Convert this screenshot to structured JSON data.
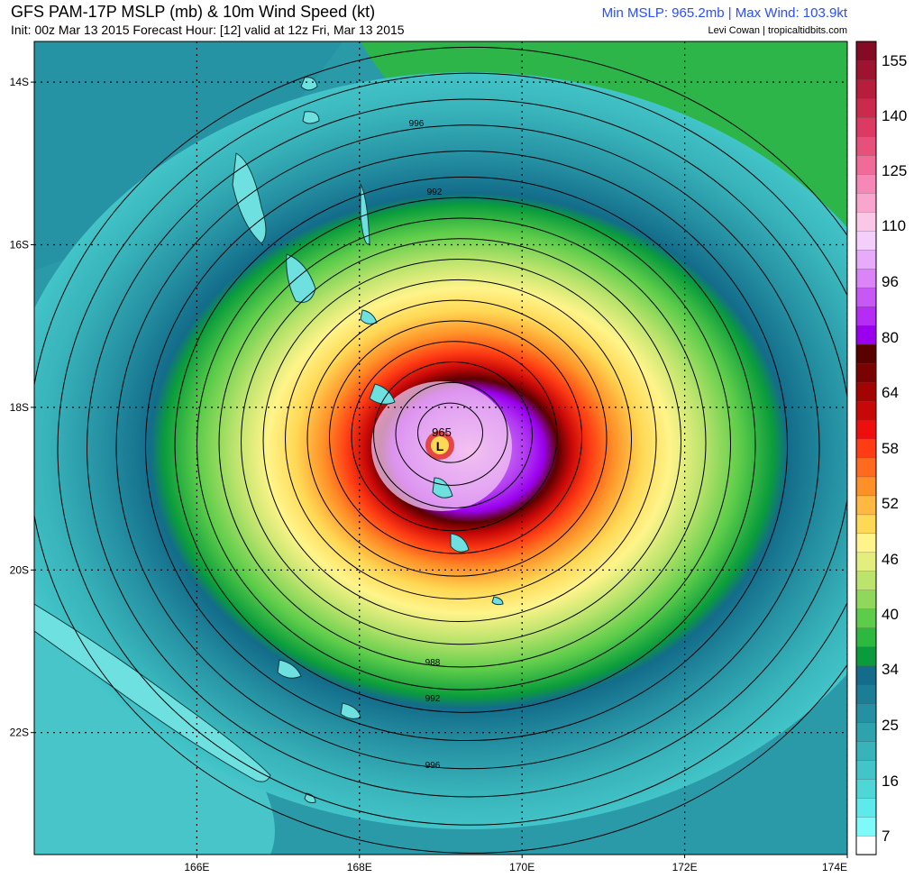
{
  "header": {
    "title": "GFS PAM-17P MSLP (mb) & 10m Wind Speed (kt)",
    "subtitle": "Init: 00z Mar 13 2015   Forecast Hour: [12]   valid at 12z Fri, Mar 13 2015",
    "stats": "Min MSLP: 965.2mb | Max Wind: 103.9kt",
    "credit": "Levi Cowan | tropicaltidbits.com"
  },
  "map": {
    "lon_range": [
      164,
      174
    ],
    "lat_range": [
      -23.5,
      -13.5
    ],
    "lat_ticks": [
      {
        "value": -14,
        "label": "14S"
      },
      {
        "value": -16,
        "label": "16S"
      },
      {
        "value": -18,
        "label": "18S"
      },
      {
        "value": -20,
        "label": "20S"
      },
      {
        "value": -22,
        "label": "22S"
      }
    ],
    "lon_ticks": [
      {
        "value": 166,
        "label": "166E"
      },
      {
        "value": 168,
        "label": "168E"
      },
      {
        "value": 170,
        "label": "170E"
      },
      {
        "value": 172,
        "label": "172E"
      },
      {
        "value": 174,
        "label": "174E"
      }
    ],
    "cyclone_center": {
      "lon": 169.1,
      "lat": -18.3
    },
    "center_label": "965",
    "low_marker": "L",
    "isobar_labels": [
      "996",
      "992",
      "988",
      "992",
      "996"
    ]
  },
  "colorbar": {
    "units": "kt",
    "ticks": [
      "155",
      "140",
      "125",
      "110",
      "96",
      "80",
      "64",
      "58",
      "52",
      "46",
      "40",
      "34",
      "25",
      "16",
      "7"
    ],
    "colors": [
      "#ffffff",
      "#7ffafa",
      "#5eeaea",
      "#4fd6d6",
      "#42c4c8",
      "#38b3ba",
      "#2ea2ad",
      "#2590a2",
      "#1c7e96",
      "#136c8a",
      "#0a9c3c",
      "#2db83f",
      "#5ccc4a",
      "#8fd85c",
      "#bce46d",
      "#e4ee7e",
      "#fff48a",
      "#ffd855",
      "#ffb840",
      "#ff9028",
      "#ff6a1e",
      "#ff3c14",
      "#ee0e0e",
      "#c80808",
      "#a20404",
      "#7a0202",
      "#5a0000",
      "#9a00ee",
      "#b52cf4",
      "#c858f6",
      "#da84f8",
      "#e8aafa",
      "#f4cffb",
      "#fbc7e6",
      "#f8a6ce",
      "#f588b6",
      "#f06b98",
      "#e8507c",
      "#dc3a62",
      "#cc2a4c",
      "#b61e3c",
      "#9e1430",
      "#850a26"
    ]
  }
}
